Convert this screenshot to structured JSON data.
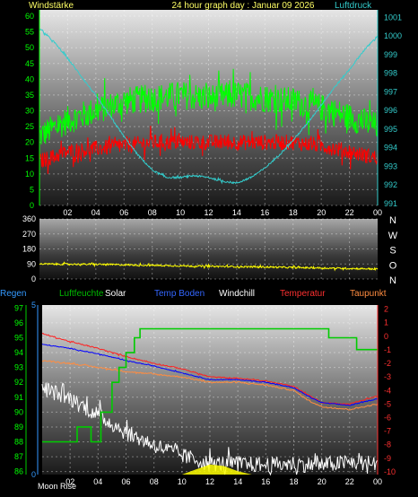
{
  "header": {
    "left_label": "Windstärke",
    "title": "24 hour graph day : Januar 09 2026",
    "right_label": "Luftdruck"
  },
  "colors": {
    "wind_gust": "#00ff00",
    "wind_avg": "#ff0000",
    "pressure": "#33cccc",
    "wind_dir": "#ffff00",
    "humidity": "#ffffff",
    "solar": "#ffff00",
    "windchill": "#ffffff",
    "temp_boden": "#0000ff",
    "temperatur": "#ff2020",
    "taupunkt": "#ff8c40",
    "regen": "#3399ff",
    "luftfeuchte": "#00cc00",
    "solar_label": "#ffffff",
    "windchill_label": "#ffffff",
    "temp_boden_label": "#3366ff",
    "temperatur_label": "#ff3030",
    "taupunkt_label": "#ff8c40",
    "regen_label": "#3399ff",
    "luftfeuchte_label": "#00bb00",
    "moon": "#ffff00",
    "grid": "#ffffff",
    "axis": "#00ff00"
  },
  "chart_data": [
    {
      "type": "line",
      "name": "wind-pressure",
      "x_ticks": [
        "02",
        "04",
        "06",
        "08",
        "10",
        "12",
        "14",
        "16",
        "18",
        "20",
        "22",
        "00"
      ],
      "left_axis": {
        "label": "Windstärke",
        "ticks": [
          0,
          5,
          10,
          15,
          20,
          25,
          30,
          35,
          40,
          45,
          50,
          55,
          60
        ],
        "ylim": [
          0,
          62
        ]
      },
      "right_axis": {
        "label": "Luftdruck",
        "ticks": [
          991,
          992,
          993,
          994,
          995,
          996,
          997,
          998,
          999,
          1000,
          1001
        ],
        "ylim": [
          990.9,
          1001.4
        ]
      },
      "xlim": [
        0,
        24
      ],
      "series": [
        {
          "key": "gust",
          "color": "wind_gust",
          "axis": "left",
          "noise": 4.5,
          "x": [
            0,
            2,
            4,
            6,
            8,
            10,
            12,
            14,
            16,
            18,
            20,
            22,
            24
          ],
          "y": [
            22,
            27,
            30,
            33,
            34,
            35,
            34,
            35,
            34,
            33,
            31,
            28,
            25
          ]
        },
        {
          "key": "avg",
          "color": "wind_avg",
          "axis": "left",
          "noise": 2.5,
          "x": [
            0,
            2,
            4,
            6,
            8,
            10,
            12,
            14,
            16,
            18,
            20,
            22,
            24
          ],
          "y": [
            14,
            17,
            18,
            19,
            20,
            20,
            20,
            20,
            20,
            20,
            19,
            17,
            15
          ]
        },
        {
          "key": "pressure",
          "color": "pressure",
          "axis": "right",
          "noise": 0.05,
          "x": [
            0,
            1,
            2,
            3,
            4,
            5,
            6,
            7,
            8,
            9,
            10,
            11,
            12,
            13,
            14,
            15,
            16,
            17,
            18,
            19,
            20,
            21,
            22,
            23,
            24
          ],
          "y": [
            1000.4,
            999.7,
            998.8,
            997.8,
            996.8,
            995.7,
            994.6,
            993.6,
            992.8,
            992.4,
            992.4,
            992.5,
            992.4,
            992.2,
            992.1,
            992.4,
            992.9,
            993.6,
            994.4,
            995.3,
            996.3,
            997.3,
            998.2,
            999.2,
            1000.0
          ]
        }
      ]
    },
    {
      "type": "line",
      "name": "wind-direction",
      "x_ticks": [],
      "left_axis": {
        "ticks": [
          0,
          90,
          180,
          270,
          360
        ],
        "ylim": [
          0,
          360
        ]
      },
      "right_axis": {
        "ticks": [
          "N",
          "W",
          "S",
          "O",
          "N"
        ]
      },
      "xlim": [
        0,
        24
      ],
      "series": [
        {
          "key": "dir",
          "color": "wind_dir",
          "axis": "left",
          "noise": 5,
          "x": [
            0,
            4,
            8,
            12,
            16,
            20,
            24
          ],
          "y": [
            90,
            88,
            82,
            76,
            72,
            66,
            60
          ]
        }
      ]
    },
    {
      "type": "line",
      "name": "temp-humidity",
      "x_ticks": [
        "02",
        "04",
        "06",
        "08",
        "10",
        "12",
        "14",
        "16",
        "18",
        "20",
        "22",
        "00"
      ],
      "legend": [
        "Regen",
        "Luftfeuchte",
        "Solar",
        "Temp Boden",
        "Windchill",
        "Temperatur",
        "Taupunkt"
      ],
      "left_axis": {
        "ticks": [
          86,
          87,
          88,
          89,
          90,
          91,
          92,
          93,
          94,
          95,
          96,
          97
        ],
        "ylim": [
          85.8,
          97.2
        ]
      },
      "inner_left_axis": {
        "ticks": [
          0,
          5
        ],
        "ylim": [
          0,
          5
        ]
      },
      "right_axis": {
        "ticks": [
          -10,
          -9,
          -8,
          -7,
          -6,
          -5,
          -4,
          -3,
          -2,
          -1,
          0,
          1,
          2
        ],
        "ylim": [
          -10.2,
          2.3
        ]
      },
      "xlim": [
        0,
        24
      ],
      "series": [
        {
          "key": "temperatur",
          "color": "temperatur",
          "axis": "right",
          "noise": 0.04,
          "x": [
            0,
            2,
            4,
            6,
            8,
            10,
            12,
            14,
            16,
            18,
            19,
            20,
            22,
            24
          ],
          "y": [
            0.2,
            -0.4,
            -0.9,
            -1.5,
            -2.0,
            -2.4,
            -3.0,
            -3.1,
            -3.3,
            -3.7,
            -4.3,
            -4.9,
            -5.0,
            -4.4
          ]
        },
        {
          "key": "temp_boden",
          "color": "temp_boden",
          "axis": "right",
          "noise": 0.03,
          "x": [
            0,
            2,
            4,
            6,
            8,
            10,
            12,
            14,
            16,
            18,
            19,
            20,
            22,
            24
          ],
          "y": [
            -0.6,
            -0.9,
            -1.3,
            -1.8,
            -2.2,
            -2.7,
            -3.2,
            -3.2,
            -3.4,
            -3.8,
            -4.4,
            -4.9,
            -5.1,
            -4.6
          ]
        },
        {
          "key": "taupunkt",
          "color": "taupunkt",
          "axis": "right",
          "noise": 0.05,
          "x": [
            0,
            2,
            4,
            6,
            8,
            10,
            12,
            14,
            16,
            18,
            19,
            20,
            22,
            24
          ],
          "y": [
            -1.8,
            -2.0,
            -2.3,
            -2.6,
            -2.8,
            -3.0,
            -3.4,
            -3.4,
            -3.6,
            -4.0,
            -4.7,
            -5.2,
            -5.4,
            -5.0
          ]
        },
        {
          "key": "windchill",
          "color": "windchill",
          "axis": "right",
          "noise": 0.6,
          "x": [
            0,
            2,
            4,
            6,
            8,
            10,
            12,
            14,
            16,
            18,
            20,
            22,
            24
          ],
          "y": [
            -3.8,
            -4.6,
            -5.8,
            -7.1,
            -8.0,
            -8.8,
            -9.4,
            -9.4,
            -9.5,
            -9.4,
            -9.5,
            -9.3,
            -9.4
          ]
        },
        {
          "key": "luftfeuchte",
          "color": "luftfeuchte",
          "axis": "left",
          "noise": 0,
          "step": true,
          "x": [
            0,
            0.8,
            1.5,
            2.5,
            3.5,
            4.2,
            5,
            5.5,
            6,
            6.6,
            7,
            17,
            20,
            20.5,
            21.5,
            22.5,
            23,
            24
          ],
          "y": [
            88,
            88,
            88,
            89,
            88,
            90,
            92,
            93,
            94,
            95,
            95.6,
            95.6,
            95.6,
            95.0,
            95.0,
            94.2,
            94.2,
            94.2
          ]
        }
      ],
      "solar": {
        "x": [
          10,
          11,
          12,
          13,
          14,
          15
        ],
        "y": [
          0.0,
          0.15,
          0.3,
          0.25,
          0.1,
          0.0
        ]
      },
      "moon_label": "Moon Rise"
    }
  ]
}
